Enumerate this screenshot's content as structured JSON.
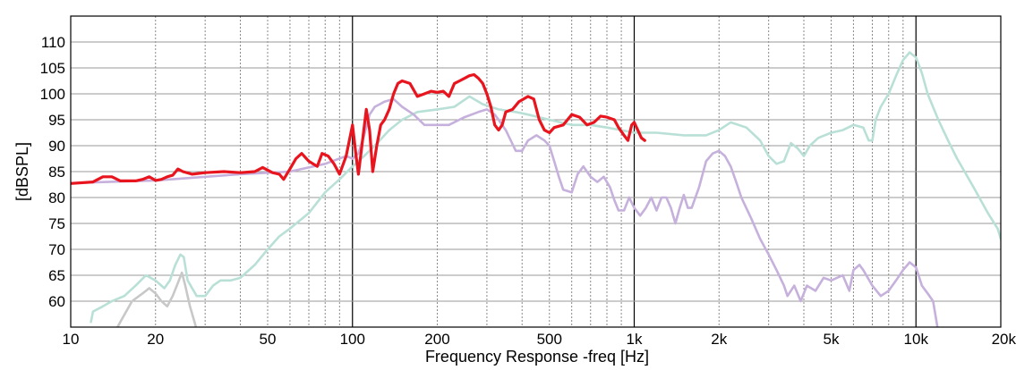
{
  "chart_data": {
    "type": "line",
    "xlabel": "Frequency Response -freq [Hz]",
    "ylabel": "[dBSPL]",
    "x_scale": "log",
    "xlim": [
      10,
      20000
    ],
    "ylim": [
      55,
      115
    ],
    "grid": true,
    "x_ticks": [
      {
        "v": 10,
        "label": "10"
      },
      {
        "v": 20,
        "label": "20"
      },
      {
        "v": 50,
        "label": "50"
      },
      {
        "v": 100,
        "label": "100"
      },
      {
        "v": 200,
        "label": "200"
      },
      {
        "v": 500,
        "label": "500"
      },
      {
        "v": 1000,
        "label": "1k"
      },
      {
        "v": 2000,
        "label": "2k"
      },
      {
        "v": 5000,
        "label": "5k"
      },
      {
        "v": 10000,
        "label": "10k"
      },
      {
        "v": 20000,
        "label": "20k"
      }
    ],
    "y_ticks": [
      60,
      65,
      70,
      75,
      80,
      85,
      90,
      95,
      100,
      105,
      110
    ],
    "series": [
      {
        "color": "#b9e0d6",
        "points": [
          [
            11.8,
            56
          ],
          [
            12,
            58
          ],
          [
            13,
            59
          ],
          [
            14,
            60
          ],
          [
            15.5,
            61
          ],
          [
            17,
            63
          ],
          [
            18.5,
            65
          ],
          [
            20,
            64
          ],
          [
            21.5,
            62.5
          ],
          [
            22.5,
            64
          ],
          [
            23.5,
            67
          ],
          [
            24.5,
            69
          ],
          [
            25.2,
            68.5
          ],
          [
            26,
            64
          ],
          [
            28,
            61
          ],
          [
            30,
            61
          ],
          [
            32,
            63
          ],
          [
            34,
            64
          ],
          [
            37,
            64
          ],
          [
            40,
            64.5
          ],
          [
            45,
            67
          ],
          [
            50,
            70
          ],
          [
            55,
            72.5
          ],
          [
            60,
            74
          ],
          [
            70,
            77
          ],
          [
            80,
            81
          ],
          [
            90,
            83.5
          ],
          [
            100,
            86
          ],
          [
            110,
            88
          ],
          [
            120,
            90
          ],
          [
            135,
            93
          ],
          [
            150,
            95
          ],
          [
            170,
            96.5
          ],
          [
            200,
            97
          ],
          [
            230,
            97.5
          ],
          [
            260,
            99.5
          ],
          [
            290,
            98
          ],
          [
            330,
            97
          ],
          [
            380,
            96.5
          ],
          [
            420,
            96
          ],
          [
            500,
            95
          ],
          [
            600,
            94
          ],
          [
            700,
            94
          ],
          [
            800,
            93.5
          ],
          [
            900,
            93
          ],
          [
            1000,
            92.5
          ],
          [
            1200,
            92.5
          ],
          [
            1500,
            92
          ],
          [
            1800,
            92
          ],
          [
            2000,
            93
          ],
          [
            2200,
            94.5
          ],
          [
            2500,
            93.5
          ],
          [
            2800,
            91
          ],
          [
            3000,
            88
          ],
          [
            3200,
            86.5
          ],
          [
            3400,
            87
          ],
          [
            3600,
            90.5
          ],
          [
            3800,
            89.5
          ],
          [
            4000,
            88
          ],
          [
            4200,
            90
          ],
          [
            4500,
            91.5
          ],
          [
            5000,
            92.5
          ],
          [
            5500,
            93
          ],
          [
            6000,
            94
          ],
          [
            6500,
            93.5
          ],
          [
            6800,
            91
          ],
          [
            7000,
            91
          ],
          [
            7200,
            95
          ],
          [
            7500,
            97.5
          ],
          [
            8000,
            100
          ],
          [
            8500,
            103.5
          ],
          [
            9000,
            106.5
          ],
          [
            9500,
            108
          ],
          [
            10000,
            107
          ],
          [
            10500,
            104
          ],
          [
            11000,
            100
          ],
          [
            12000,
            95
          ],
          [
            13000,
            91
          ],
          [
            14000,
            87.5
          ],
          [
            16000,
            82
          ],
          [
            18000,
            77
          ],
          [
            19500,
            74
          ],
          [
            20000,
            72
          ]
        ]
      },
      {
        "color": "#c6b0dc",
        "points": [
          [
            10,
            82.8
          ],
          [
            20,
            83.3
          ],
          [
            40,
            84.5
          ],
          [
            60,
            85
          ],
          [
            80,
            86.5
          ],
          [
            95,
            88
          ],
          [
            100,
            87.5
          ],
          [
            105,
            88.5
          ],
          [
            110,
            92
          ],
          [
            115,
            96
          ],
          [
            120,
            97.5
          ],
          [
            125,
            98
          ],
          [
            130,
            98.5
          ],
          [
            140,
            99
          ],
          [
            150,
            97.5
          ],
          [
            165,
            96
          ],
          [
            180,
            94
          ],
          [
            200,
            94
          ],
          [
            220,
            94
          ],
          [
            250,
            95.5
          ],
          [
            280,
            96.5
          ],
          [
            300,
            97
          ],
          [
            320,
            96
          ],
          [
            330,
            95
          ],
          [
            350,
            93
          ],
          [
            380,
            89
          ],
          [
            400,
            89
          ],
          [
            420,
            91
          ],
          [
            450,
            92
          ],
          [
            480,
            91
          ],
          [
            500,
            90
          ],
          [
            520,
            87
          ],
          [
            540,
            84
          ],
          [
            560,
            81.5
          ],
          [
            600,
            81
          ],
          [
            630,
            84.5
          ],
          [
            660,
            86
          ],
          [
            700,
            84
          ],
          [
            740,
            83
          ],
          [
            780,
            84
          ],
          [
            820,
            82
          ],
          [
            850,
            79.5
          ],
          [
            880,
            77.5
          ],
          [
            920,
            77.5
          ],
          [
            960,
            80
          ],
          [
            1000,
            78
          ],
          [
            1050,
            76.5
          ],
          [
            1100,
            78
          ],
          [
            1150,
            80
          ],
          [
            1200,
            77.5
          ],
          [
            1250,
            80
          ],
          [
            1300,
            80
          ],
          [
            1350,
            78
          ],
          [
            1400,
            75
          ],
          [
            1450,
            78
          ],
          [
            1500,
            80.5
          ],
          [
            1550,
            78
          ],
          [
            1600,
            78
          ],
          [
            1700,
            82
          ],
          [
            1800,
            87
          ],
          [
            1900,
            88.5
          ],
          [
            2000,
            89
          ],
          [
            2100,
            88
          ],
          [
            2200,
            86
          ],
          [
            2300,
            83
          ],
          [
            2400,
            80
          ],
          [
            2600,
            76
          ],
          [
            2800,
            72
          ],
          [
            3000,
            69
          ],
          [
            3200,
            66
          ],
          [
            3400,
            63
          ],
          [
            3500,
            61
          ],
          [
            3700,
            63
          ],
          [
            3900,
            60
          ],
          [
            4100,
            63
          ],
          [
            4400,
            62
          ],
          [
            4700,
            64.5
          ],
          [
            5000,
            64
          ],
          [
            5500,
            65
          ],
          [
            5800,
            62
          ],
          [
            6000,
            66
          ],
          [
            6300,
            67
          ],
          [
            6500,
            66
          ],
          [
            7000,
            63
          ],
          [
            7500,
            61
          ],
          [
            8000,
            62
          ],
          [
            8500,
            64
          ],
          [
            9000,
            66
          ],
          [
            9500,
            67.5
          ],
          [
            10000,
            66.5
          ],
          [
            10500,
            63
          ],
          [
            11000,
            61.5
          ],
          [
            11500,
            60
          ],
          [
            12000,
            54
          ]
        ]
      },
      {
        "color": "#c8c8c8",
        "points": [
          [
            14,
            53
          ],
          [
            15,
            56
          ],
          [
            16.5,
            60
          ],
          [
            18,
            61.5
          ],
          [
            19,
            62.5
          ],
          [
            20,
            61.5
          ],
          [
            21,
            60
          ],
          [
            22,
            59
          ],
          [
            23,
            61
          ],
          [
            24,
            63.5
          ],
          [
            24.8,
            65.5
          ],
          [
            25.5,
            63
          ],
          [
            26.5,
            59
          ],
          [
            27.5,
            56
          ],
          [
            28.5,
            53
          ]
        ]
      },
      {
        "color": "#e8141e",
        "points": [
          [
            10,
            82.7
          ],
          [
            12,
            83
          ],
          [
            13,
            84
          ],
          [
            14,
            84
          ],
          [
            15,
            83.2
          ],
          [
            17,
            83.2
          ],
          [
            18,
            83.5
          ],
          [
            19,
            84
          ],
          [
            20,
            83.3
          ],
          [
            21,
            83.5
          ],
          [
            22,
            84
          ],
          [
            23,
            84.3
          ],
          [
            24,
            85.5
          ],
          [
            25,
            85
          ],
          [
            27,
            84.5
          ],
          [
            30,
            84.8
          ],
          [
            35,
            85
          ],
          [
            40,
            84.8
          ],
          [
            45,
            85
          ],
          [
            48,
            85.8
          ],
          [
            52,
            84.8
          ],
          [
            55,
            84.5
          ],
          [
            57,
            83.5
          ],
          [
            60,
            85.5
          ],
          [
            63,
            87.5
          ],
          [
            66,
            88.5
          ],
          [
            70,
            87
          ],
          [
            75,
            86
          ],
          [
            78,
            88.5
          ],
          [
            82,
            88
          ],
          [
            86,
            86.5
          ],
          [
            90,
            84.5
          ],
          [
            95,
            88
          ],
          [
            100,
            94
          ],
          [
            103,
            88
          ],
          [
            105,
            84.5
          ],
          [
            108,
            90
          ],
          [
            112,
            97
          ],
          [
            115,
            93
          ],
          [
            118,
            85
          ],
          [
            122,
            90
          ],
          [
            126,
            94
          ],
          [
            130,
            95
          ],
          [
            135,
            97
          ],
          [
            140,
            100
          ],
          [
            145,
            102
          ],
          [
            150,
            102.5
          ],
          [
            160,
            102
          ],
          [
            170,
            99.5
          ],
          [
            180,
            100
          ],
          [
            190,
            100.5
          ],
          [
            200,
            100.3
          ],
          [
            210,
            100.5
          ],
          [
            220,
            99.5
          ],
          [
            230,
            102
          ],
          [
            240,
            102.5
          ],
          [
            250,
            103
          ],
          [
            260,
            103.5
          ],
          [
            270,
            103.7
          ],
          [
            280,
            103
          ],
          [
            290,
            102
          ],
          [
            300,
            100
          ],
          [
            310,
            97.5
          ],
          [
            320,
            94
          ],
          [
            330,
            93
          ],
          [
            340,
            94
          ],
          [
            350,
            96.5
          ],
          [
            370,
            97
          ],
          [
            390,
            98.5
          ],
          [
            420,
            99.5
          ],
          [
            440,
            99
          ],
          [
            460,
            95
          ],
          [
            480,
            93
          ],
          [
            500,
            92.5
          ],
          [
            520,
            93.5
          ],
          [
            560,
            94
          ],
          [
            600,
            96
          ],
          [
            640,
            95.5
          ],
          [
            680,
            94
          ],
          [
            720,
            94.5
          ],
          [
            760,
            95.7
          ],
          [
            800,
            95.5
          ],
          [
            850,
            95
          ],
          [
            880,
            93.5
          ],
          [
            920,
            92
          ],
          [
            950,
            91
          ],
          [
            980,
            94
          ],
          [
            1000,
            94.5
          ],
          [
            1030,
            93
          ],
          [
            1060,
            91.5
          ],
          [
            1090,
            91
          ]
        ]
      }
    ]
  }
}
